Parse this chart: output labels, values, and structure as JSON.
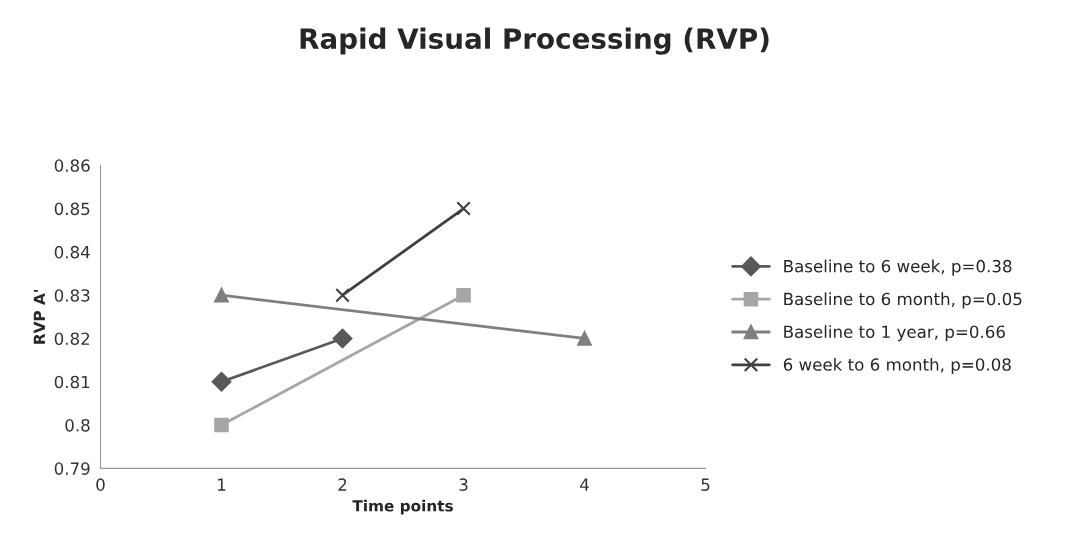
{
  "chart_data": {
    "type": "line",
    "title": "Rapid Visual Processing (RVP)",
    "xlabel": "Time points",
    "ylabel": "RVP A'",
    "xlim": [
      0,
      5
    ],
    "xticks": [
      0,
      1,
      2,
      3,
      4,
      5
    ],
    "ylim": [
      0.79,
      0.86
    ],
    "yticks": [
      0.79,
      0.8,
      0.81,
      0.82,
      0.83,
      0.84,
      0.85,
      0.86
    ],
    "grid": false,
    "legend": "right",
    "series": [
      {
        "name": "Baseline to 6 week, p=0.38",
        "color": "#595959",
        "marker": "diamond",
        "x": [
          1,
          2
        ],
        "values": [
          0.81,
          0.82
        ]
      },
      {
        "name": "Baseline to 6 month, p=0.05",
        "color": "#a6a6a6",
        "marker": "square",
        "x": [
          1,
          3
        ],
        "values": [
          0.8,
          0.83
        ]
      },
      {
        "name": "Baseline to 1 year, p=0.66",
        "color": "#7f7f7f",
        "marker": "triangle",
        "x": [
          1,
          4
        ],
        "values": [
          0.83,
          0.82
        ]
      },
      {
        "name": "6 week to 6 month, p=0.08",
        "color": "#404040",
        "marker": "cross",
        "x": [
          2,
          3
        ],
        "values": [
          0.83,
          0.85
        ]
      }
    ]
  }
}
